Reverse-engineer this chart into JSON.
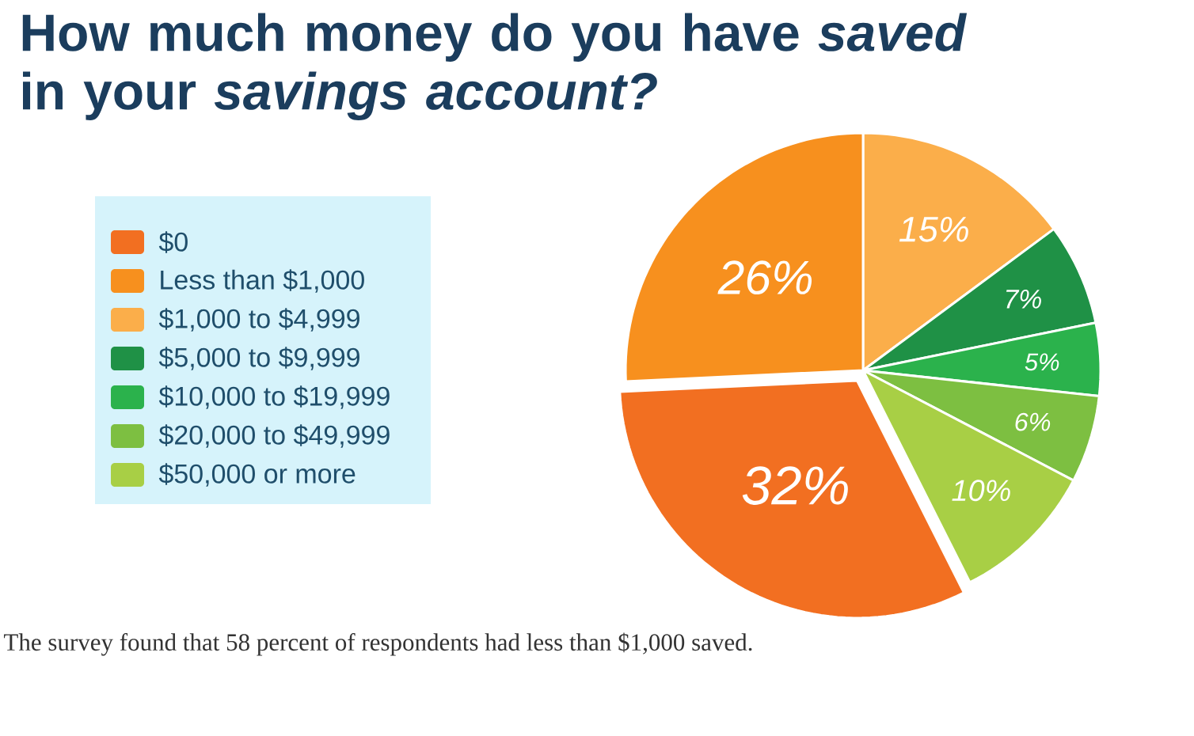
{
  "chart_data": {
    "type": "pie",
    "title": "How much money do you have *saved* in your *savings account?*",
    "categories": [
      "$0",
      "Less than $1,000",
      "$1,000 to $4,999",
      "$5,000 to $9,999",
      "$10,000 to $19,999",
      "$20,000 to $49,999",
      "$50,000 or more"
    ],
    "values": [
      32,
      26,
      15,
      7,
      5,
      6,
      10
    ],
    "value_labels": [
      "32%",
      "26%",
      "15%",
      "7%",
      "5%",
      "6%",
      "10%"
    ],
    "colors": [
      "#f26f21",
      "#f7901e",
      "#fbae4a",
      "#1f9146",
      "#2bb24c",
      "#7dbf41",
      "#a8cf45"
    ],
    "legend": "left",
    "annotations": [
      "The survey found that 58 percent of respondents had less than $1,000 saved."
    ]
  }
}
